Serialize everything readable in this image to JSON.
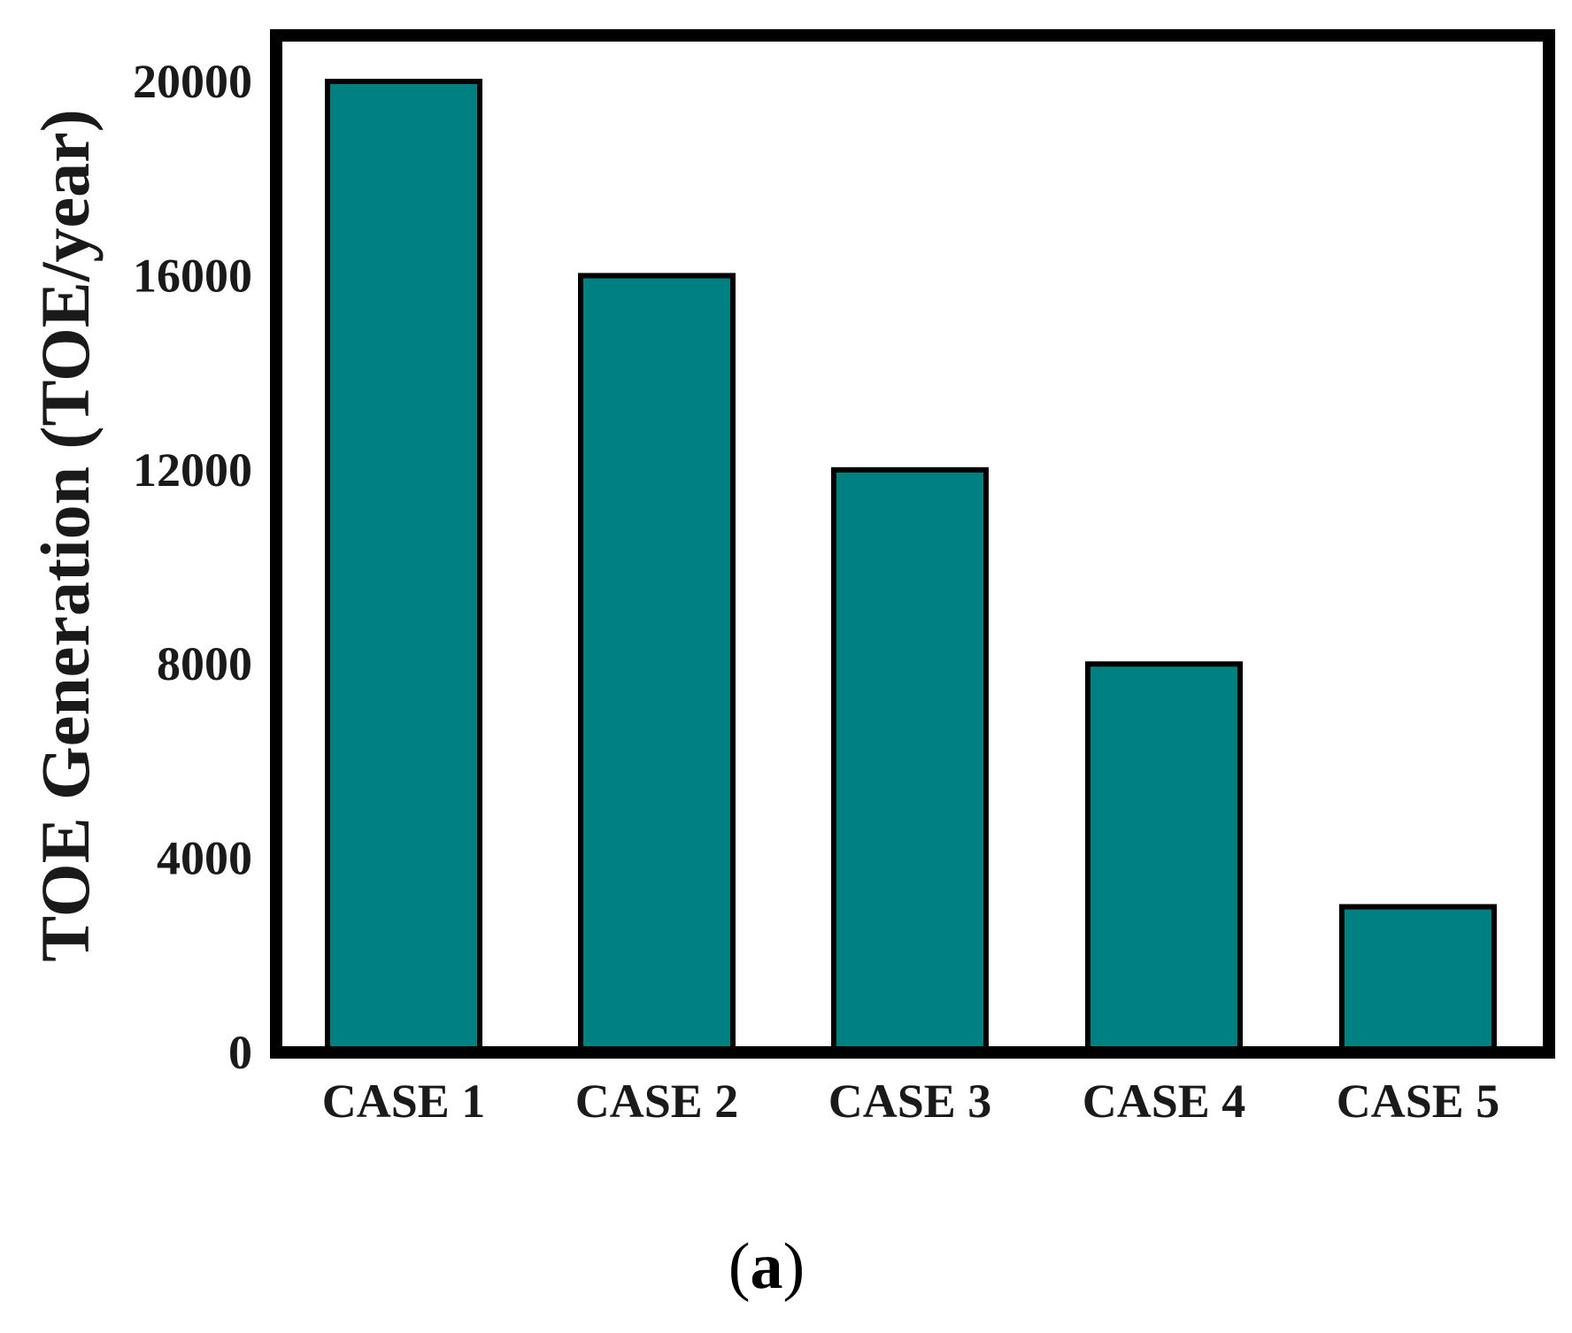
{
  "chart_data": {
    "type": "bar",
    "categories": [
      "CASE 1",
      "CASE 2",
      "CASE 3",
      "CASE 4",
      "CASE 5"
    ],
    "values": [
      20000,
      16000,
      12000,
      8000,
      3000
    ],
    "ylabel": "TOE Generation (TOE/year)",
    "xlabel": "",
    "ylim": [
      0,
      21000
    ],
    "yticks": [
      0,
      4000,
      8000,
      12000,
      16000,
      20000
    ],
    "grid": false,
    "legend": "none",
    "bar_color": "#008080",
    "edge_color": "#000000",
    "panel_label": "a"
  }
}
